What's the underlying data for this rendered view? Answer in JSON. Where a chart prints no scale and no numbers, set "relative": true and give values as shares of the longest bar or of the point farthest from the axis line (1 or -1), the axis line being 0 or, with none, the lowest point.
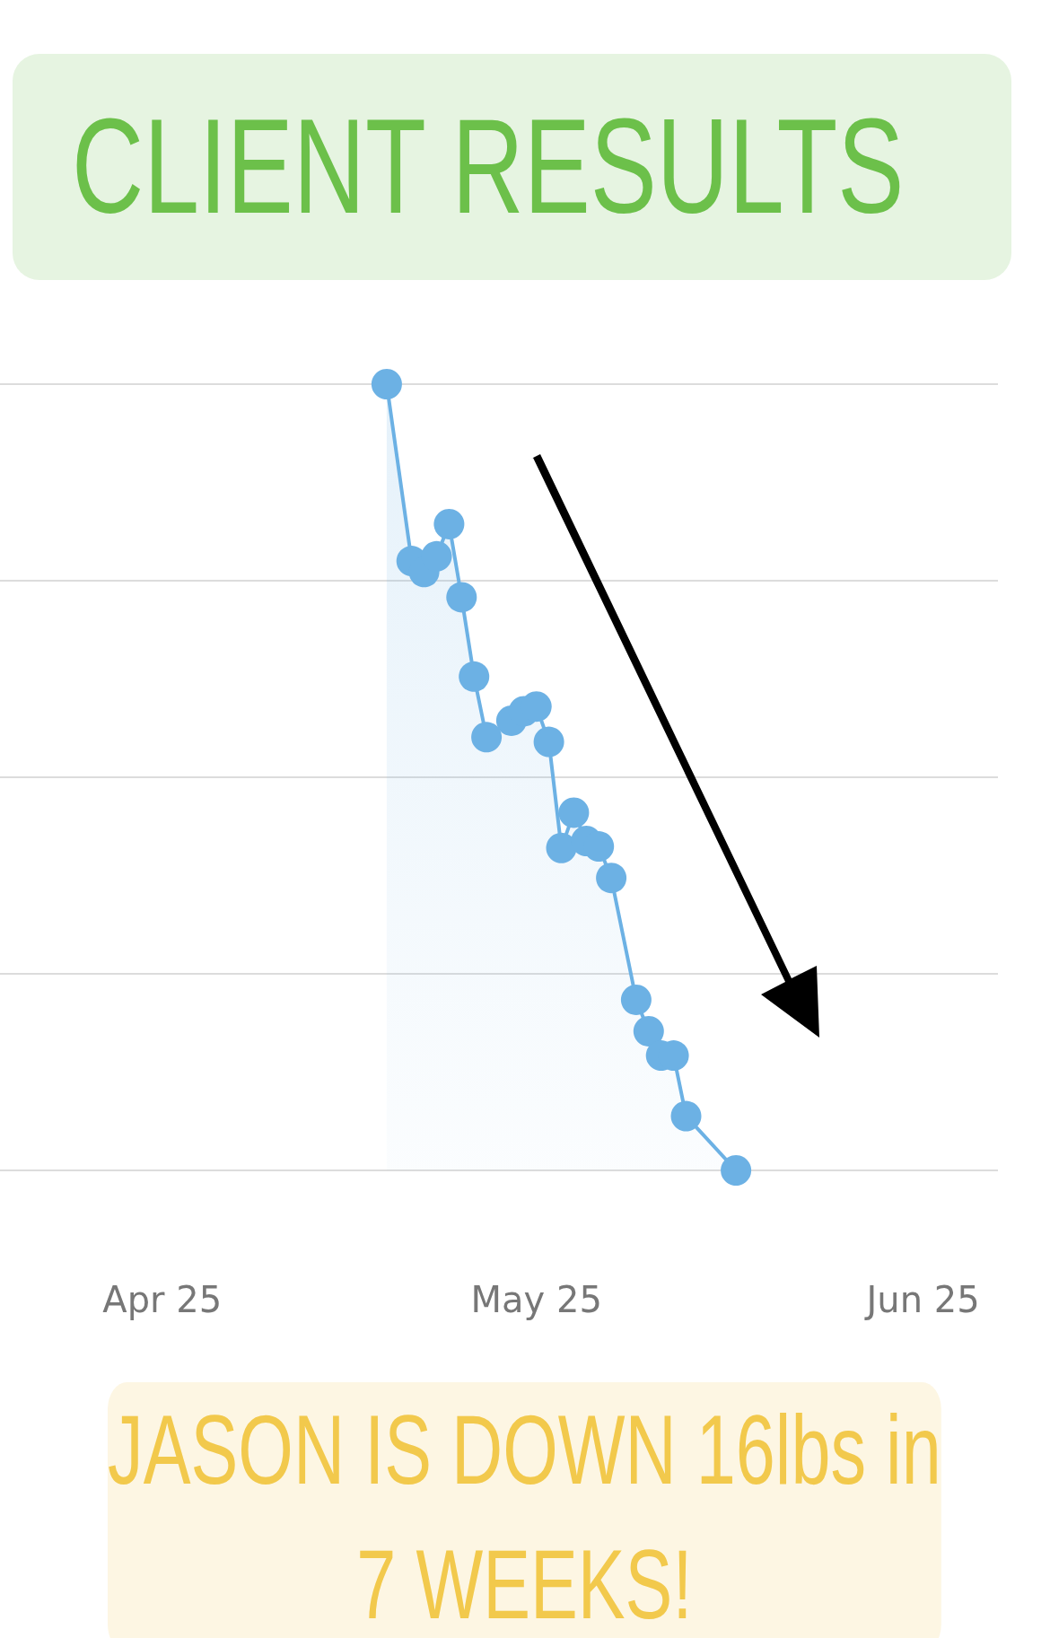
{
  "chart_data": {
    "type": "area",
    "title": "CLIENT RESULTS",
    "annotations": [
      "JASON IS DOWN 16lbs in 7 WEEKS!"
    ],
    "relative": true,
    "color": "#6cb1e4",
    "marker": "circle",
    "grid": "y",
    "x": [
      "--05-13",
      "--05-15",
      "--05-16",
      "--05-17",
      "--05-18",
      "--05-19",
      "--05-20",
      "--05-21",
      "--05-23",
      "--05-24",
      "--05-25",
      "--05-26",
      "--05-27",
      "--05-28",
      "--05-29",
      "--05-30",
      "--05-31",
      "--06-02",
      "--06-03",
      "--06-04",
      "--06-05",
      "--06-06",
      "--06-10"
    ],
    "values": [
      1.0,
      0.775,
      0.761,
      0.781,
      0.822,
      0.729,
      0.628,
      0.551,
      0.572,
      0.584,
      0.59,
      0.545,
      0.41,
      0.455,
      0.419,
      0.412,
      0.372,
      0.217,
      0.177,
      0.146,
      0.146,
      0.069,
      0
    ],
    "xlim": [
      "--04-12",
      "--07-01"
    ],
    "xticks": [
      {
        "value": "--04-25",
        "label": "Apr 25"
      },
      {
        "value": "--05-25",
        "label": "May 25"
      },
      {
        "value": "--06-25",
        "label": "Jun 25"
      }
    ]
  }
}
